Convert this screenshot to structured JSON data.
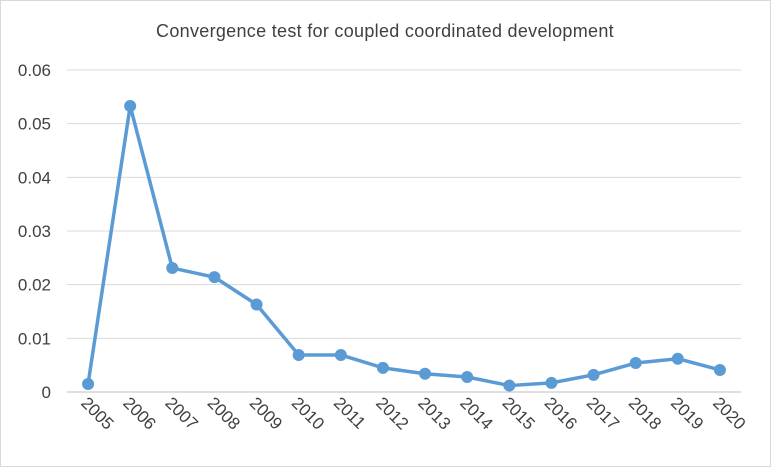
{
  "chart_data": {
    "type": "line",
    "title": "Convergence test for coupled coordinated development",
    "xlabel": "",
    "ylabel": "",
    "categories": [
      "2005",
      "2006",
      "2007",
      "2008",
      "2009",
      "2010",
      "2011",
      "2012",
      "2013",
      "2014",
      "2015",
      "2016",
      "2017",
      "2018",
      "2019",
      "2020"
    ],
    "series": [
      {
        "values": [
          0.0015,
          0.0533,
          0.0231,
          0.0214,
          0.0163,
          0.0069,
          0.0069,
          0.0045,
          0.0034,
          0.0028,
          0.0012,
          0.0017,
          0.0032,
          0.0054,
          0.0062,
          0.0041
        ],
        "color": "#5b9bd5"
      }
    ],
    "ylim": [
      0,
      0.06
    ],
    "yticks": [
      "0",
      "0.01",
      "0.02",
      "0.03",
      "0.04",
      "0.05",
      "0.06"
    ],
    "grid": true,
    "legend": "none"
  }
}
